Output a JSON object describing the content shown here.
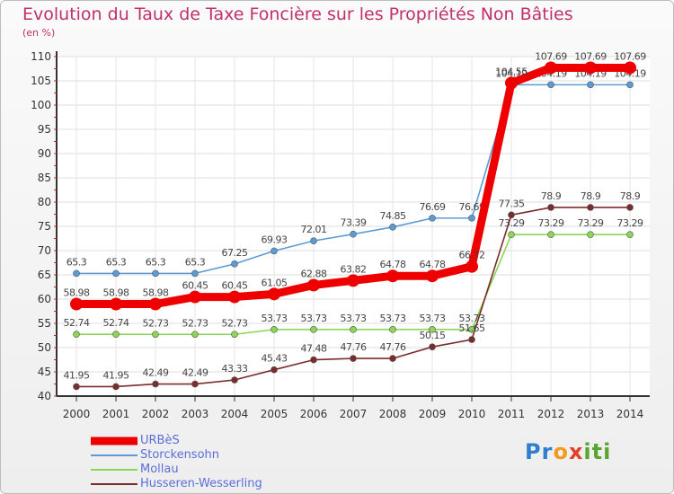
{
  "title": "Evolution du Taux de Taxe Foncière sur les Propriétés Non Bâties",
  "unit_label": "(en %)",
  "logo": {
    "text": "Proxiti",
    "letters": [
      "P",
      "r",
      "o",
      "x",
      "i",
      "t",
      "i"
    ],
    "colors": [
      "#2e7fd0",
      "#2e7fd0",
      "#f29b1e",
      "#e2402b",
      "#5aa532",
      "#5aa532",
      "#5aa532"
    ]
  },
  "chart_data": {
    "type": "line",
    "title": "Evolution du Taux de Taxe Foncière sur les Propriétés Non Bâties",
    "ylabel": "(en %)",
    "xlabel": "",
    "x": [
      "2000",
      "2001",
      "2002",
      "2003",
      "2004",
      "2005",
      "2006",
      "2007",
      "2008",
      "2009",
      "2010",
      "2011",
      "2012",
      "2013",
      "2014"
    ],
    "ylim": [
      40,
      110
    ],
    "yticks": [
      40,
      45,
      50,
      55,
      60,
      65,
      70,
      75,
      80,
      85,
      90,
      95,
      100,
      105,
      110
    ],
    "grid": true,
    "legend_placement": "bottom-left",
    "series": [
      {
        "name": "URBèS",
        "color": "#ee0000",
        "highlight": true,
        "values": [
          58.98,
          58.98,
          58.98,
          60.45,
          60.45,
          61.05,
          62.88,
          63.82,
          64.78,
          64.78,
          66.72,
          104.55,
          107.69,
          107.69,
          107.69
        ],
        "labels": [
          "58.98",
          "58.98",
          "58.98",
          "60.45",
          "60.45",
          "61.05",
          "62.88",
          "63.82",
          "64.78",
          "64.78",
          "66.72",
          "104.55",
          "107.69",
          "107.69",
          "107.69"
        ]
      },
      {
        "name": "Storckensohn",
        "color": "#5b9bd5",
        "highlight": false,
        "values": [
          65.3,
          65.3,
          65.3,
          65.3,
          67.25,
          69.93,
          72.01,
          73.39,
          74.85,
          76.69,
          76.69,
          104.19,
          104.19,
          104.19,
          104.19
        ],
        "labels": [
          "65.3",
          "65.3",
          "65.3",
          "65.3",
          "67.25",
          "69.93",
          "72.01",
          "73.39",
          "74.85",
          "76.69",
          "76.69",
          "104.19",
          "104.19",
          "104.19",
          "104.19"
        ]
      },
      {
        "name": "Mollau",
        "color": "#8bd653",
        "highlight": false,
        "values": [
          52.74,
          52.74,
          52.73,
          52.73,
          52.73,
          53.73,
          53.73,
          53.73,
          53.73,
          53.73,
          53.73,
          73.29,
          73.29,
          73.29,
          73.29
        ],
        "labels": [
          "52.74",
          "52.74",
          "52.73",
          "52.73",
          "52.73",
          "53.73",
          "53.73",
          "53.73",
          "53.73",
          "53.73",
          "53.73",
          "73.29",
          "73.29",
          "73.29",
          "73.29"
        ]
      },
      {
        "name": "Husseren-Wesserling",
        "color": "#7b2c2c",
        "highlight": false,
        "values": [
          41.95,
          41.95,
          42.49,
          42.49,
          43.33,
          45.43,
          47.48,
          47.76,
          47.76,
          50.15,
          51.65,
          77.35,
          78.9,
          78.9,
          78.9
        ],
        "labels": [
          "41.95",
          "41.95",
          "42.49",
          "42.49",
          "43.33",
          "45.43",
          "47.48",
          "47.76",
          "47.76",
          "50.15",
          "51.65",
          "77.35",
          "78.9",
          "78.9",
          "78.9"
        ]
      }
    ]
  }
}
